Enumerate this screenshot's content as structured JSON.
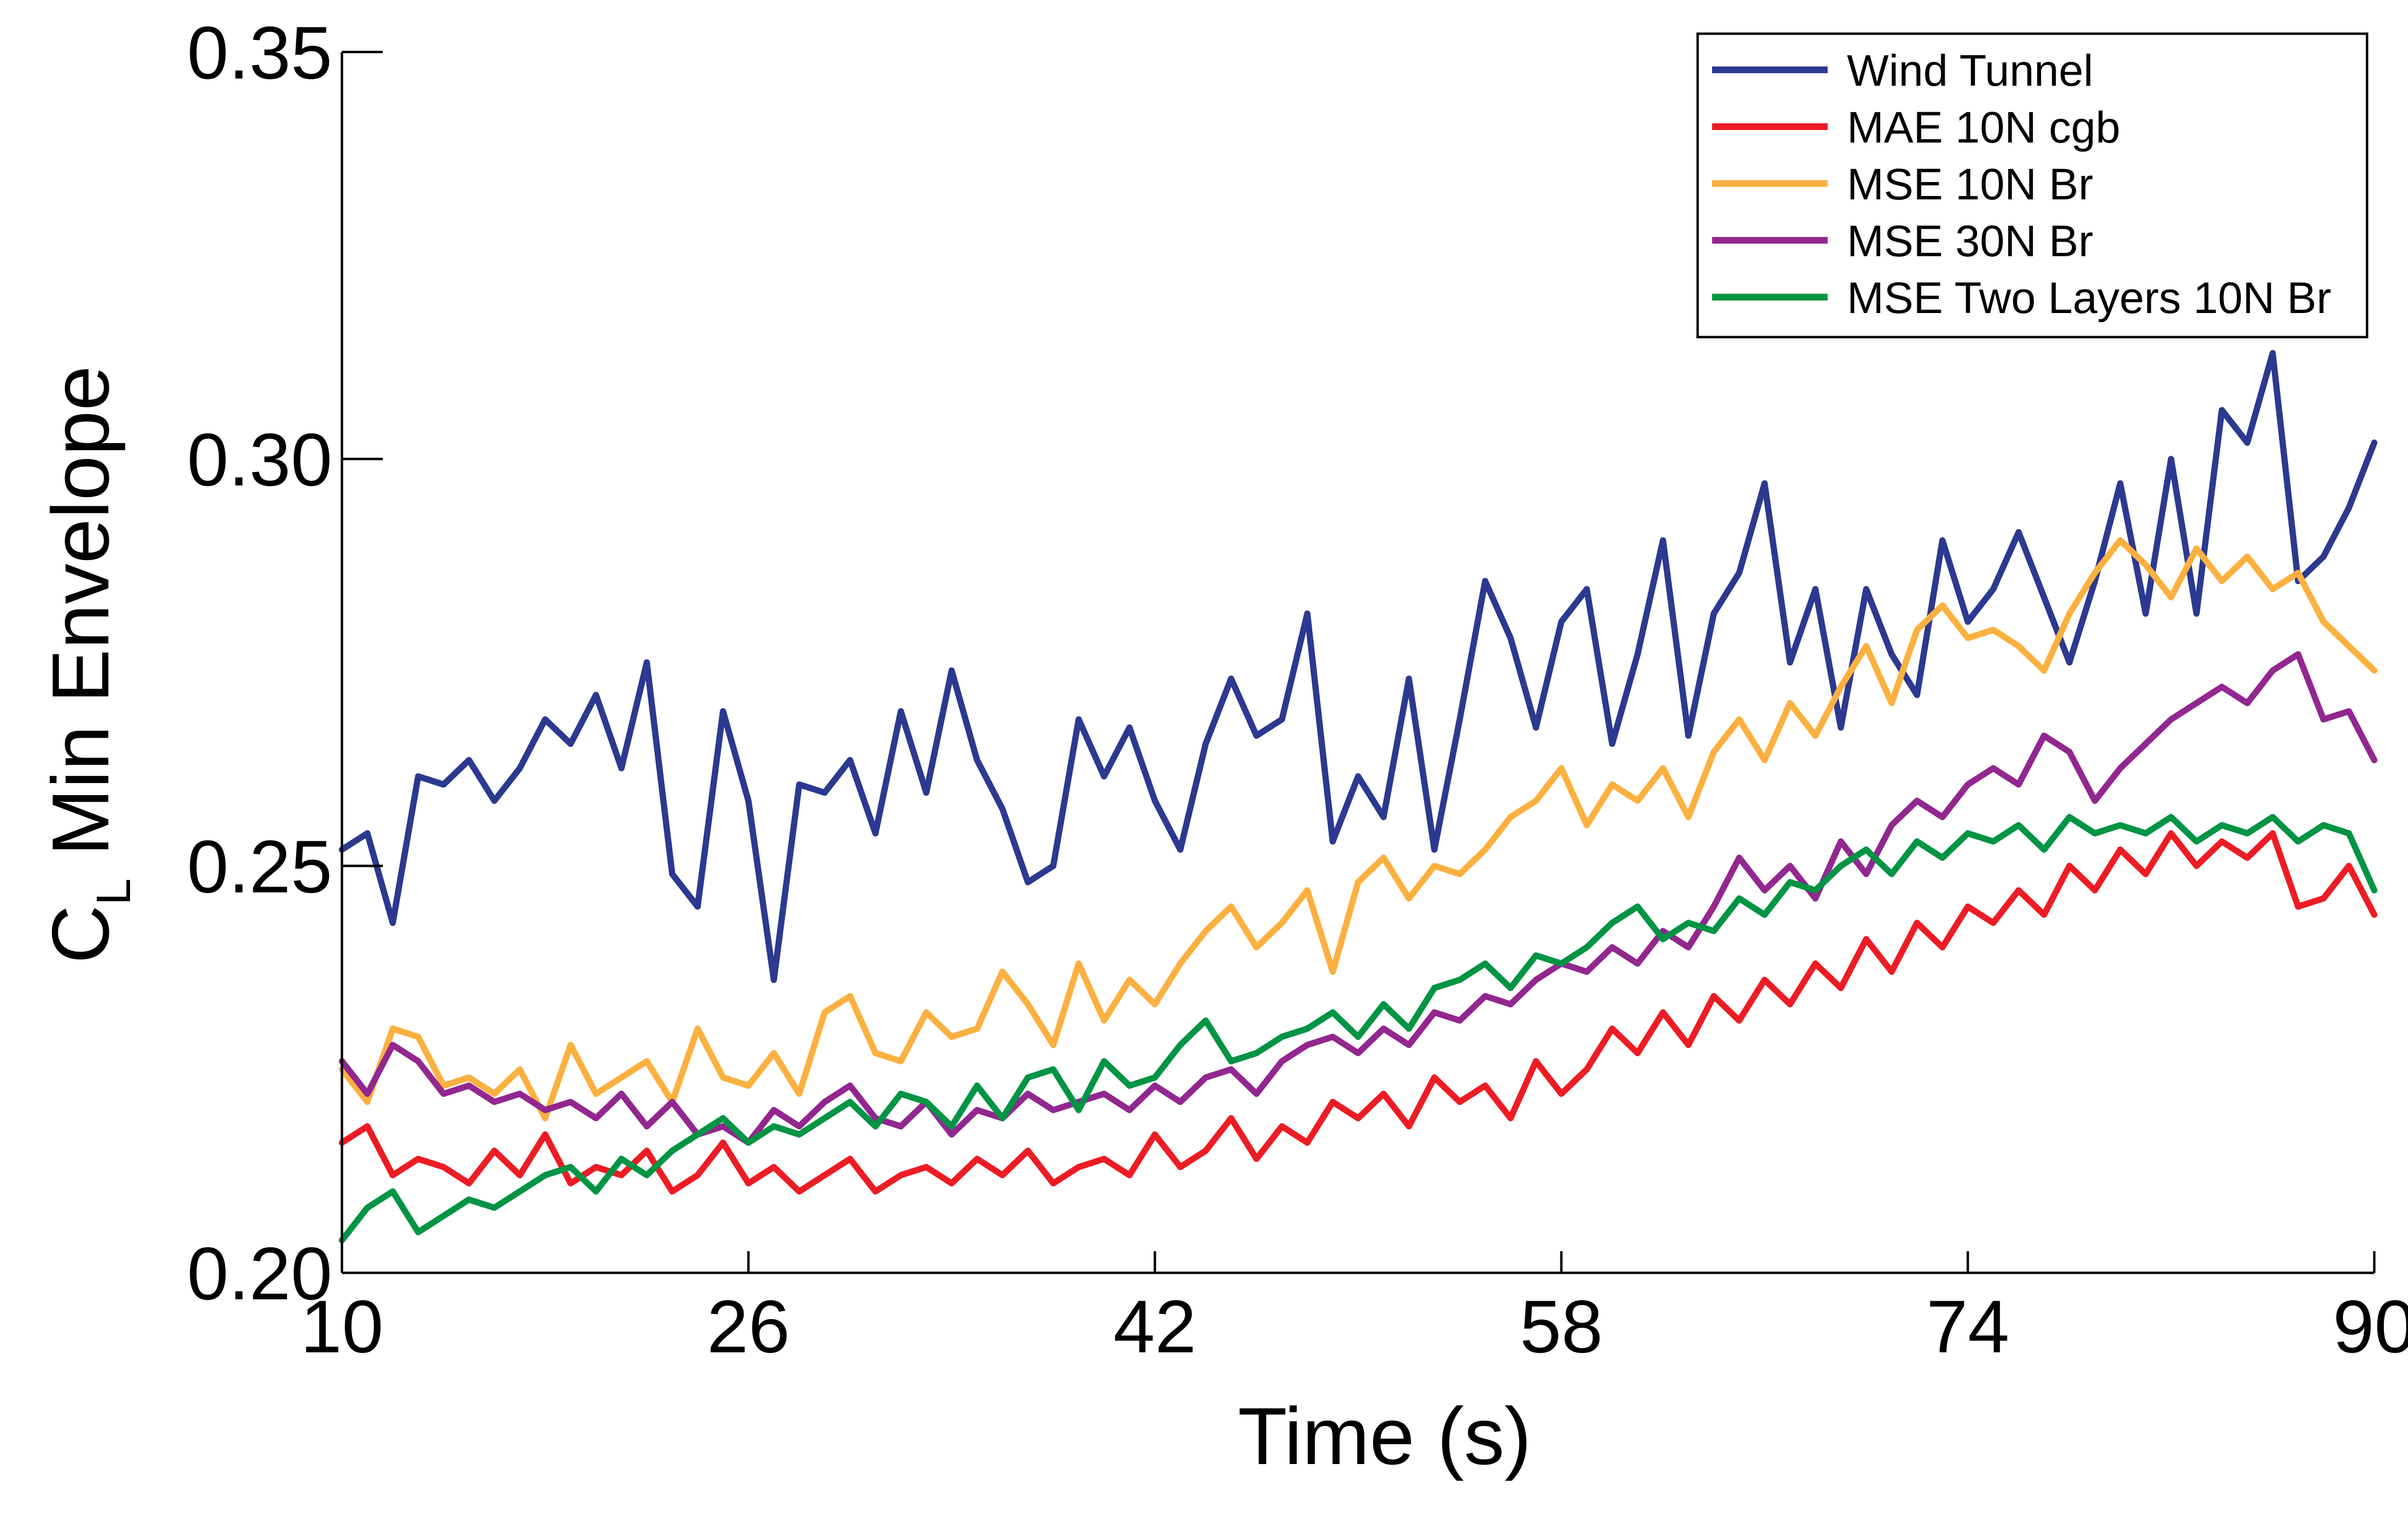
{
  "chart_data": {
    "type": "line",
    "xlabel": "Time (s)",
    "ylabel_main": "C",
    "ylabel_sub": "L",
    "ylabel_rest": " Min Envelope",
    "xlim": [
      10,
      90
    ],
    "ylim": [
      0.2,
      0.35
    ],
    "xticks": [
      10,
      26,
      42,
      58,
      74,
      90
    ],
    "xtick_labels": [
      "10",
      "26",
      "42",
      "58",
      "74",
      "90"
    ],
    "yticks": [
      0.2,
      0.25,
      0.3,
      0.35
    ],
    "ytick_labels": [
      "0.20",
      "0.25",
      "0.30",
      "0.35"
    ],
    "legend_position": "top-right",
    "grid": false,
    "series": [
      {
        "name": "Wind Tunnel",
        "color": "#2b3990",
        "x": [
          10,
          11,
          12,
          13,
          14,
          15,
          16,
          17,
          18,
          19,
          20,
          21,
          22,
          23,
          24,
          25,
          26,
          27,
          28,
          29,
          30,
          31,
          32,
          33,
          34,
          35,
          36,
          37,
          38,
          39,
          40,
          41,
          42,
          43,
          44,
          45,
          46,
          47,
          48,
          49,
          50,
          51,
          52,
          53,
          54,
          55,
          56,
          57,
          58,
          59,
          60,
          61,
          62,
          63,
          64,
          65,
          66,
          67,
          68,
          69,
          70,
          71,
          72,
          73,
          74,
          75,
          76,
          77,
          78,
          79,
          80,
          81,
          82,
          83,
          84,
          85,
          86,
          87,
          88,
          89,
          90
        ],
        "y": [
          0.252,
          0.254,
          0.243,
          0.261,
          0.26,
          0.263,
          0.258,
          0.262,
          0.268,
          0.265,
          0.271,
          0.262,
          0.275,
          0.249,
          0.245,
          0.269,
          0.258,
          0.236,
          0.26,
          0.259,
          0.263,
          0.254,
          0.269,
          0.259,
          0.274,
          0.263,
          0.257,
          0.248,
          0.25,
          0.268,
          0.261,
          0.267,
          0.258,
          0.252,
          0.265,
          0.273,
          0.266,
          0.268,
          0.281,
          0.253,
          0.261,
          0.256,
          0.273,
          0.252,
          0.268,
          0.285,
          0.278,
          0.267,
          0.28,
          0.284,
          0.265,
          0.276,
          0.29,
          0.266,
          0.281,
          0.286,
          0.297,
          0.275,
          0.284,
          0.267,
          0.284,
          0.276,
          0.271,
          0.29,
          0.28,
          0.284,
          0.291,
          0.283,
          0.275,
          0.285,
          0.297,
          0.281,
          0.3,
          0.281,
          0.306,
          0.302,
          0.313,
          0.285,
          0.288,
          0.294,
          0.302
        ]
      },
      {
        "name": "MAE 10N cgb",
        "color": "#ed1c24",
        "x": [
          10,
          11,
          12,
          13,
          14,
          15,
          16,
          17,
          18,
          19,
          20,
          21,
          22,
          23,
          24,
          25,
          26,
          27,
          28,
          29,
          30,
          31,
          32,
          33,
          34,
          35,
          36,
          37,
          38,
          39,
          40,
          41,
          42,
          43,
          44,
          45,
          46,
          47,
          48,
          49,
          50,
          51,
          52,
          53,
          54,
          55,
          56,
          57,
          58,
          59,
          60,
          61,
          62,
          63,
          64,
          65,
          66,
          67,
          68,
          69,
          70,
          71,
          72,
          73,
          74,
          75,
          76,
          77,
          78,
          79,
          80,
          81,
          82,
          83,
          84,
          85,
          86,
          87,
          88,
          89,
          90
        ],
        "y": [
          0.216,
          0.218,
          0.212,
          0.214,
          0.213,
          0.211,
          0.215,
          0.212,
          0.217,
          0.211,
          0.213,
          0.212,
          0.215,
          0.21,
          0.212,
          0.216,
          0.211,
          0.213,
          0.21,
          0.212,
          0.214,
          0.21,
          0.212,
          0.213,
          0.211,
          0.214,
          0.212,
          0.215,
          0.211,
          0.213,
          0.214,
          0.212,
          0.217,
          0.213,
          0.215,
          0.219,
          0.214,
          0.218,
          0.216,
          0.221,
          0.219,
          0.222,
          0.218,
          0.224,
          0.221,
          0.223,
          0.219,
          0.226,
          0.222,
          0.225,
          0.23,
          0.227,
          0.232,
          0.228,
          0.234,
          0.231,
          0.236,
          0.233,
          0.238,
          0.235,
          0.241,
          0.237,
          0.243,
          0.24,
          0.245,
          0.243,
          0.247,
          0.244,
          0.25,
          0.247,
          0.252,
          0.249,
          0.254,
          0.25,
          0.253,
          0.251,
          0.254,
          0.245,
          0.246,
          0.25,
          0.244
        ]
      },
      {
        "name": "MSE 10N Br",
        "color": "#fbb040",
        "x": [
          10,
          11,
          12,
          13,
          14,
          15,
          16,
          17,
          18,
          19,
          20,
          21,
          22,
          23,
          24,
          25,
          26,
          27,
          28,
          29,
          30,
          31,
          32,
          33,
          34,
          35,
          36,
          37,
          38,
          39,
          40,
          41,
          42,
          43,
          44,
          45,
          46,
          47,
          48,
          49,
          50,
          51,
          52,
          53,
          54,
          55,
          56,
          57,
          58,
          59,
          60,
          61,
          62,
          63,
          64,
          65,
          66,
          67,
          68,
          69,
          70,
          71,
          72,
          73,
          74,
          75,
          76,
          77,
          78,
          79,
          80,
          81,
          82,
          83,
          84,
          85,
          86,
          87,
          88,
          89,
          90
        ],
        "y": [
          0.225,
          0.221,
          0.23,
          0.229,
          0.223,
          0.224,
          0.222,
          0.225,
          0.219,
          0.228,
          0.222,
          0.224,
          0.226,
          0.221,
          0.23,
          0.224,
          0.223,
          0.227,
          0.222,
          0.232,
          0.234,
          0.227,
          0.226,
          0.232,
          0.229,
          0.23,
          0.237,
          0.233,
          0.228,
          0.238,
          0.231,
          0.236,
          0.233,
          0.238,
          0.242,
          0.245,
          0.24,
          0.243,
          0.247,
          0.237,
          0.248,
          0.251,
          0.246,
          0.25,
          0.249,
          0.252,
          0.256,
          0.258,
          0.262,
          0.255,
          0.26,
          0.258,
          0.262,
          0.256,
          0.264,
          0.268,
          0.263,
          0.27,
          0.266,
          0.272,
          0.277,
          0.27,
          0.279,
          0.282,
          0.278,
          0.279,
          0.277,
          0.274,
          0.281,
          0.286,
          0.29,
          0.287,
          0.283,
          0.289,
          0.285,
          0.288,
          0.284,
          0.286,
          0.28,
          0.277,
          0.274
        ]
      },
      {
        "name": "MSE 30N Br",
        "color": "#92278f",
        "x": [
          10,
          11,
          12,
          13,
          14,
          15,
          16,
          17,
          18,
          19,
          20,
          21,
          22,
          23,
          24,
          25,
          26,
          27,
          28,
          29,
          30,
          31,
          32,
          33,
          34,
          35,
          36,
          37,
          38,
          39,
          40,
          41,
          42,
          43,
          44,
          45,
          46,
          47,
          48,
          49,
          50,
          51,
          52,
          53,
          54,
          55,
          56,
          57,
          58,
          59,
          60,
          61,
          62,
          63,
          64,
          65,
          66,
          67,
          68,
          69,
          70,
          71,
          72,
          73,
          74,
          75,
          76,
          77,
          78,
          79,
          80,
          81,
          82,
          83,
          84,
          85,
          86,
          87,
          88,
          89,
          90
        ],
        "y": [
          0.226,
          0.222,
          0.228,
          0.226,
          0.222,
          0.223,
          0.221,
          0.222,
          0.22,
          0.221,
          0.219,
          0.222,
          0.218,
          0.221,
          0.217,
          0.218,
          0.216,
          0.22,
          0.218,
          0.221,
          0.223,
          0.219,
          0.218,
          0.221,
          0.217,
          0.22,
          0.219,
          0.222,
          0.22,
          0.221,
          0.222,
          0.22,
          0.223,
          0.221,
          0.224,
          0.225,
          0.222,
          0.226,
          0.228,
          0.229,
          0.227,
          0.23,
          0.228,
          0.232,
          0.231,
          0.234,
          0.233,
          0.236,
          0.238,
          0.237,
          0.24,
          0.238,
          0.242,
          0.24,
          0.245,
          0.251,
          0.247,
          0.25,
          0.246,
          0.253,
          0.249,
          0.255,
          0.258,
          0.256,
          0.26,
          0.262,
          0.26,
          0.266,
          0.264,
          0.258,
          0.262,
          0.265,
          0.268,
          0.27,
          0.272,
          0.27,
          0.274,
          0.276,
          0.268,
          0.269,
          0.263
        ]
      },
      {
        "name": "MSE Two Layers 10N Br",
        "color": "#009444",
        "x": [
          10,
          11,
          12,
          13,
          14,
          15,
          16,
          17,
          18,
          19,
          20,
          21,
          22,
          23,
          24,
          25,
          26,
          27,
          28,
          29,
          30,
          31,
          32,
          33,
          34,
          35,
          36,
          37,
          38,
          39,
          40,
          41,
          42,
          43,
          44,
          45,
          46,
          47,
          48,
          49,
          50,
          51,
          52,
          53,
          54,
          55,
          56,
          57,
          58,
          59,
          60,
          61,
          62,
          63,
          64,
          65,
          66,
          67,
          68,
          69,
          70,
          71,
          72,
          73,
          74,
          75,
          76,
          77,
          78,
          79,
          80,
          81,
          82,
          83,
          84,
          85,
          86,
          87,
          88,
          89,
          90
        ],
        "y": [
          0.204,
          0.208,
          0.21,
          0.205,
          0.207,
          0.209,
          0.208,
          0.21,
          0.212,
          0.213,
          0.21,
          0.214,
          0.212,
          0.215,
          0.217,
          0.219,
          0.216,
          0.218,
          0.217,
          0.219,
          0.221,
          0.218,
          0.222,
          0.221,
          0.218,
          0.223,
          0.219,
          0.224,
          0.225,
          0.22,
          0.226,
          0.223,
          0.224,
          0.228,
          0.231,
          0.226,
          0.227,
          0.229,
          0.23,
          0.232,
          0.229,
          0.233,
          0.23,
          0.235,
          0.236,
          0.238,
          0.235,
          0.239,
          0.238,
          0.24,
          0.243,
          0.245,
          0.241,
          0.243,
          0.242,
          0.246,
          0.244,
          0.248,
          0.247,
          0.25,
          0.252,
          0.249,
          0.253,
          0.251,
          0.254,
          0.253,
          0.255,
          0.252,
          0.256,
          0.254,
          0.255,
          0.254,
          0.256,
          0.253,
          0.255,
          0.254,
          0.256,
          0.253,
          0.255,
          0.254,
          0.247
        ]
      }
    ]
  }
}
